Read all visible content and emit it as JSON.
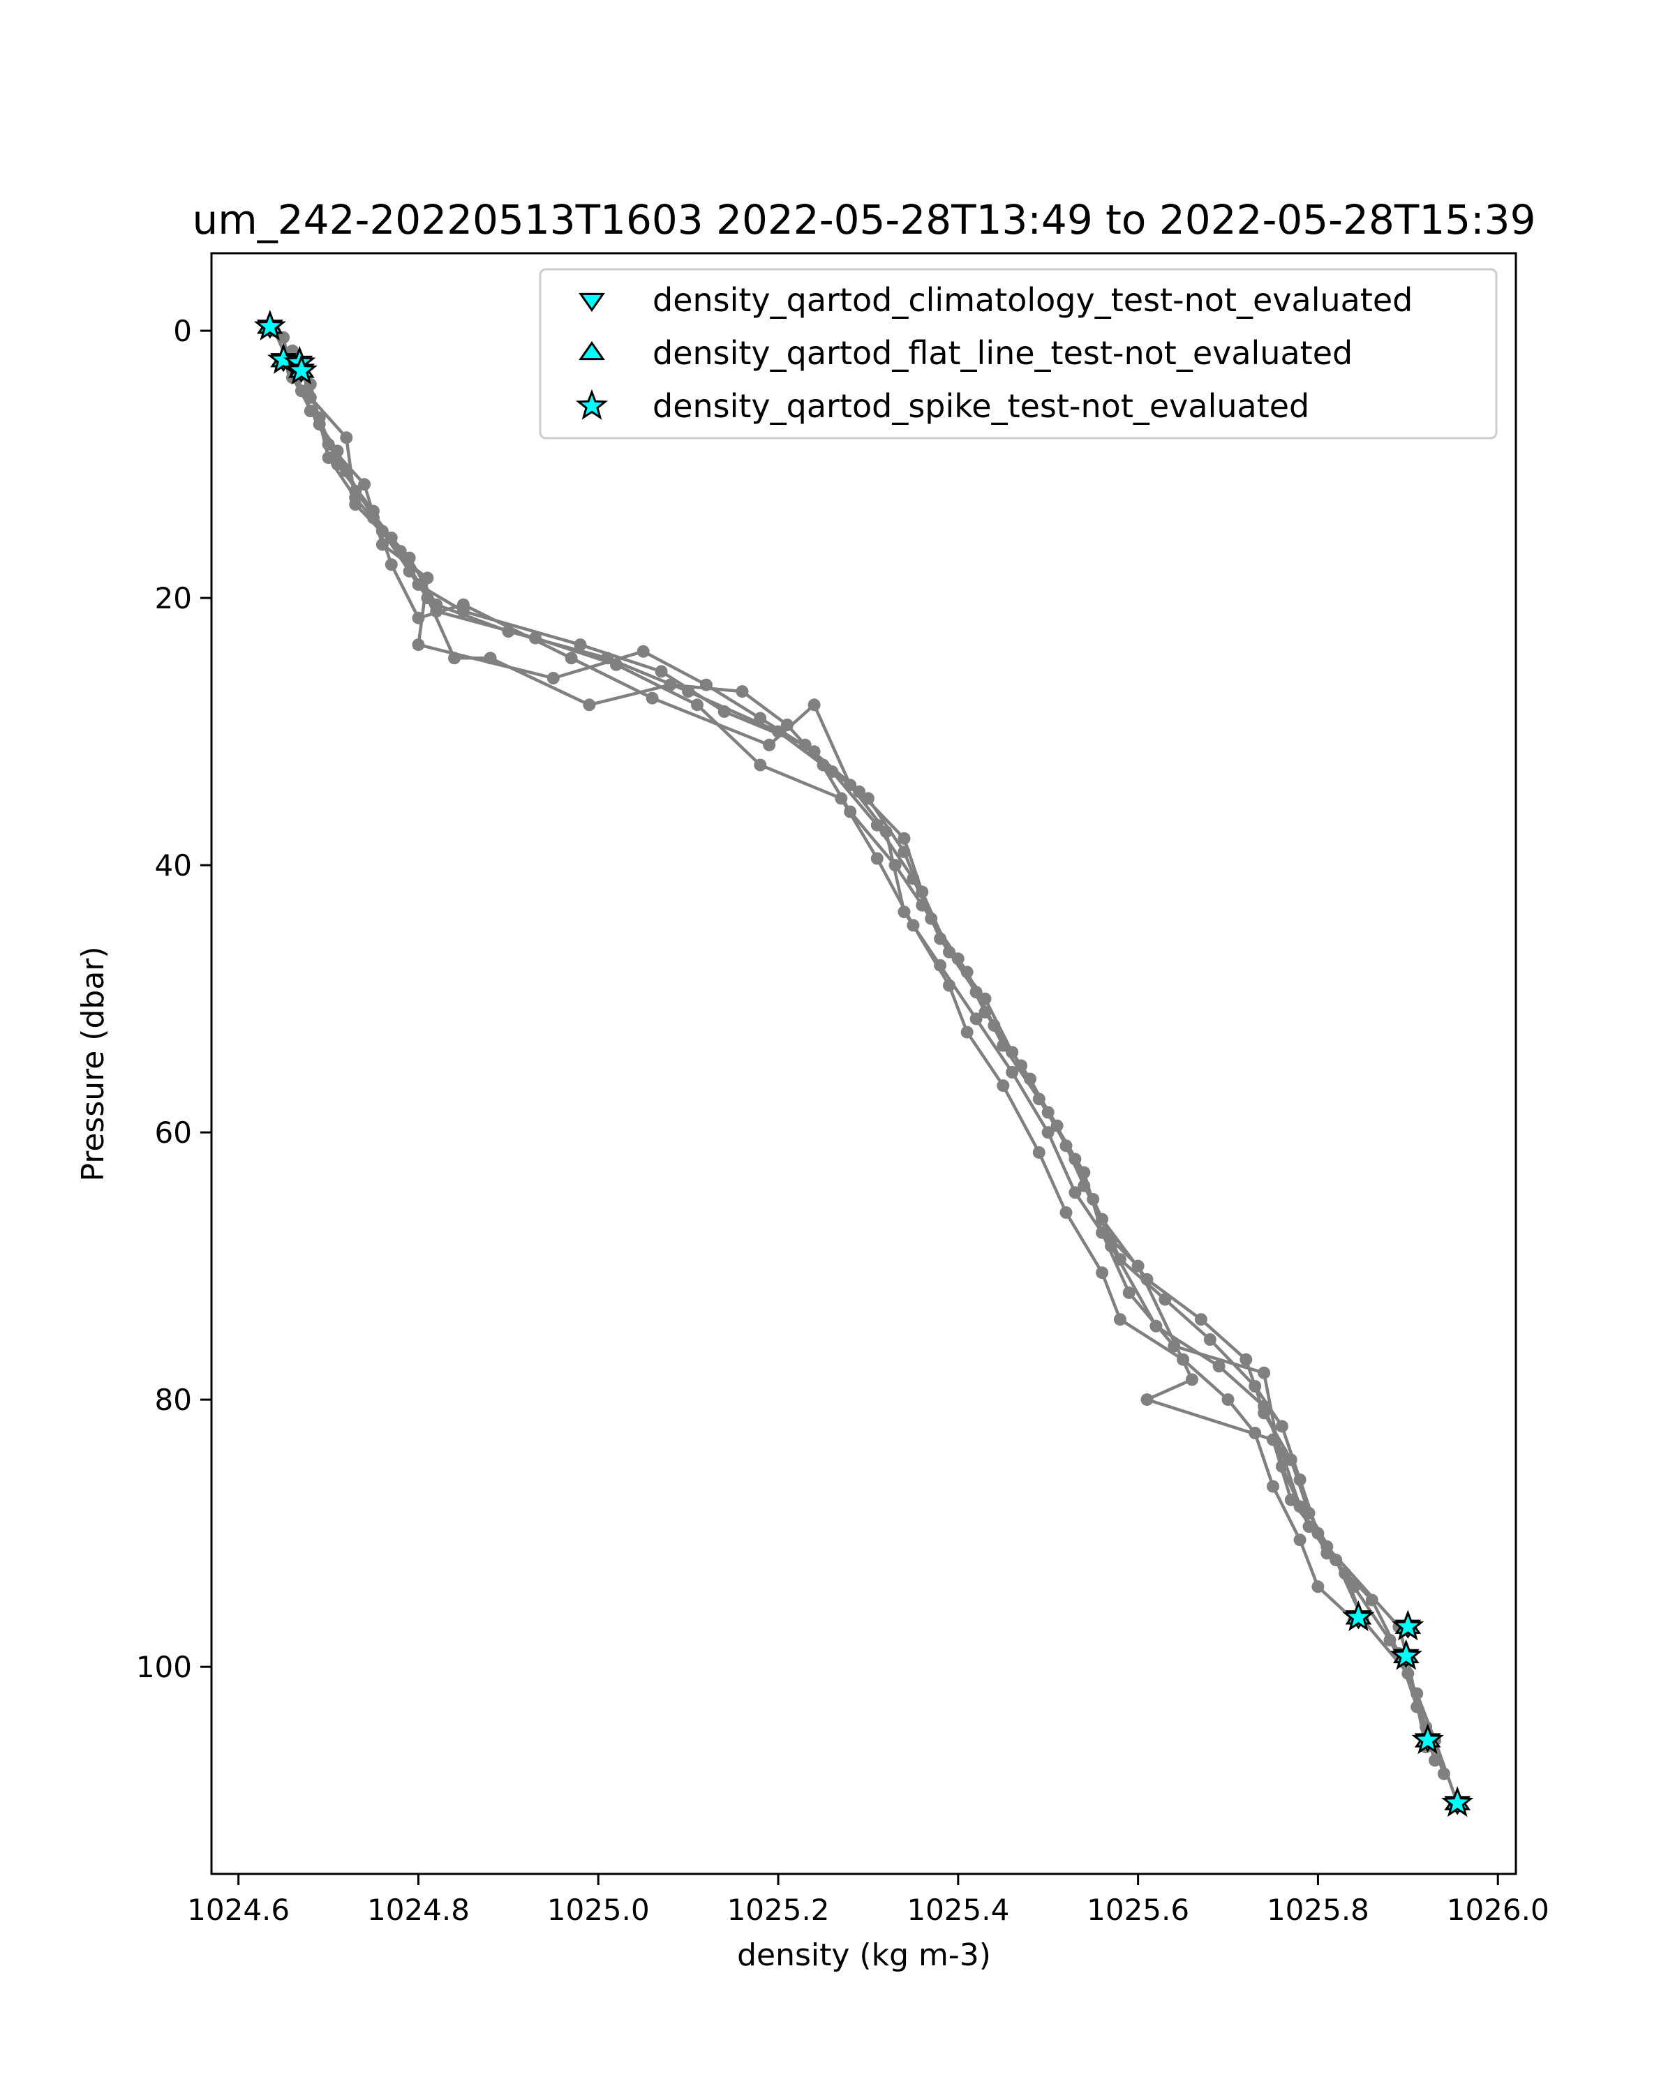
{
  "chart_data": {
    "type": "line",
    "title": "um_242-20220513T1603 2022-05-28T13:49 to 2022-05-28T15:39",
    "xlabel": "density (kg m-3)",
    "ylabel": "Pressure (dbar)",
    "xlim": [
      1024.57,
      1026.02
    ],
    "ylim": [
      115.5,
      -5.8
    ],
    "y_inverted": true,
    "grid": false,
    "legend_position": "top-right",
    "line_color": "#808080",
    "flag_color": "#00ffff",
    "x_ticks": [
      "1024.6",
      "1024.8",
      "1025.0",
      "1025.2",
      "1025.4",
      "1025.6",
      "1025.8",
      "1026.0"
    ],
    "x_tick_values": [
      1024.6,
      1024.8,
      1025.0,
      1025.2,
      1025.4,
      1025.6,
      1025.8,
      1026.0
    ],
    "y_ticks": [
      "0",
      "20",
      "40",
      "60",
      "80",
      "100"
    ],
    "y_tick_values": [
      0,
      20,
      40,
      60,
      80,
      100
    ],
    "series": [
      {
        "profile": 1,
        "points": [
          [
            1024.64,
            0.0
          ],
          [
            1024.66,
            3.0
          ],
          [
            1024.68,
            6.0
          ],
          [
            1024.71,
            9.0
          ],
          [
            1024.73,
            12.0
          ],
          [
            1024.77,
            15.5
          ],
          [
            1024.8,
            19.0
          ],
          [
            1024.85,
            21.0
          ],
          [
            1024.98,
            23.5
          ],
          [
            1025.07,
            25.5
          ],
          [
            1025.14,
            28.5
          ],
          [
            1025.23,
            31.0
          ],
          [
            1025.3,
            35.0
          ],
          [
            1025.34,
            39.0
          ],
          [
            1025.37,
            44.0
          ],
          [
            1025.41,
            48.0
          ],
          [
            1025.44,
            52.0
          ],
          [
            1025.48,
            56.0
          ],
          [
            1025.52,
            61.0
          ],
          [
            1025.55,
            65.0
          ],
          [
            1025.58,
            69.5
          ],
          [
            1025.63,
            72.5
          ],
          [
            1025.68,
            75.5
          ],
          [
            1025.73,
            79.0
          ],
          [
            1025.76,
            82.0
          ],
          [
            1025.78,
            86.0
          ],
          [
            1025.8,
            90.0
          ],
          [
            1025.84,
            94.0
          ],
          [
            1025.88,
            98.0
          ],
          [
            1025.91,
            102.0
          ],
          [
            1025.93,
            105.5
          ],
          [
            1025.955,
            110.2
          ]
        ]
      },
      {
        "profile": 2,
        "points": [
          [
            1024.65,
            0.5
          ],
          [
            1024.66,
            3.5
          ],
          [
            1024.69,
            7.0
          ],
          [
            1024.72,
            10.5
          ],
          [
            1024.75,
            14.0
          ],
          [
            1024.79,
            17.0
          ],
          [
            1024.82,
            20.5
          ],
          [
            1024.9,
            22.5
          ],
          [
            1025.01,
            24.5
          ],
          [
            1025.1,
            27.0
          ],
          [
            1025.2,
            30.0
          ],
          [
            1025.26,
            33.0
          ],
          [
            1025.31,
            37.0
          ],
          [
            1025.35,
            41.0
          ],
          [
            1025.38,
            45.5
          ],
          [
            1025.42,
            49.5
          ],
          [
            1025.45,
            53.5
          ],
          [
            1025.49,
            57.5
          ],
          [
            1025.53,
            62.0
          ],
          [
            1025.56,
            66.5
          ],
          [
            1025.61,
            71.0
          ],
          [
            1025.67,
            74.0
          ],
          [
            1025.72,
            77.0
          ],
          [
            1025.74,
            81.0
          ],
          [
            1025.77,
            84.5
          ],
          [
            1025.79,
            88.5
          ],
          [
            1025.82,
            92.0
          ],
          [
            1025.85,
            96.5
          ],
          [
            1025.9,
            100.5
          ],
          [
            1025.92,
            104.5
          ],
          [
            1025.94,
            108.0
          ]
        ]
      },
      {
        "profile": 3,
        "points": [
          [
            1024.66,
            1.5
          ],
          [
            1024.67,
            4.5
          ],
          [
            1024.7,
            8.5
          ],
          [
            1024.74,
            11.5
          ],
          [
            1024.76,
            16.0
          ],
          [
            1024.81,
            18.5
          ],
          [
            1024.8,
            23.5
          ],
          [
            1024.95,
            26.0
          ],
          [
            1025.05,
            24.0
          ],
          [
            1025.12,
            26.5
          ],
          [
            1025.18,
            29.0
          ],
          [
            1025.24,
            31.5
          ],
          [
            1025.28,
            36.0
          ],
          [
            1025.33,
            40.0
          ],
          [
            1025.36,
            43.0
          ],
          [
            1025.4,
            47.0
          ],
          [
            1025.43,
            51.0
          ],
          [
            1025.47,
            55.0
          ],
          [
            1025.51,
            59.5
          ],
          [
            1025.54,
            64.0
          ],
          [
            1025.57,
            68.0
          ],
          [
            1025.6,
            70.0
          ],
          [
            1025.66,
            78.5
          ],
          [
            1025.61,
            80.0
          ],
          [
            1025.75,
            83.0
          ],
          [
            1025.77,
            87.5
          ],
          [
            1025.81,
            91.0
          ],
          [
            1025.89,
            97.0
          ],
          [
            1025.9,
            99.5
          ],
          [
            1025.92,
            106.0
          ]
        ]
      },
      {
        "profile": 4,
        "points": [
          [
            1024.67,
            2.5
          ],
          [
            1024.68,
            5.0
          ],
          [
            1024.72,
            8.0
          ],
          [
            1024.73,
            13.0
          ],
          [
            1024.78,
            16.5
          ],
          [
            1024.81,
            20.0
          ],
          [
            1024.84,
            24.5
          ],
          [
            1024.88,
            24.5
          ],
          [
            1024.99,
            28.0
          ],
          [
            1025.08,
            26.5
          ],
          [
            1025.16,
            27.0
          ],
          [
            1025.21,
            29.5
          ],
          [
            1025.25,
            32.5
          ],
          [
            1025.29,
            34.5
          ],
          [
            1025.34,
            38.0
          ],
          [
            1025.36,
            42.0
          ],
          [
            1025.39,
            46.5
          ],
          [
            1025.43,
            50.0
          ],
          [
            1025.46,
            54.0
          ],
          [
            1025.5,
            58.5
          ],
          [
            1025.54,
            63.0
          ],
          [
            1025.56,
            67.5
          ],
          [
            1025.59,
            72.0
          ],
          [
            1025.64,
            76.0
          ],
          [
            1025.74,
            78.0
          ],
          [
            1025.76,
            85.0
          ],
          [
            1025.79,
            89.5
          ],
          [
            1025.83,
            93.0
          ],
          [
            1025.85,
            96.5
          ]
        ]
      },
      {
        "profile": 5,
        "points": [
          [
            1024.67,
            3.0
          ],
          [
            1024.69,
            6.5
          ],
          [
            1024.71,
            10.0
          ],
          [
            1024.75,
            13.5
          ],
          [
            1024.77,
            17.5
          ],
          [
            1024.8,
            21.5
          ],
          [
            1024.85,
            20.5
          ],
          [
            1024.97,
            24.5
          ],
          [
            1025.06,
            27.5
          ],
          [
            1025.19,
            31.0
          ],
          [
            1025.24,
            28.0
          ],
          [
            1025.28,
            34.0
          ],
          [
            1025.32,
            37.5
          ],
          [
            1025.34,
            43.5
          ],
          [
            1025.38,
            47.5
          ],
          [
            1025.42,
            51.5
          ],
          [
            1025.46,
            55.5
          ],
          [
            1025.5,
            60.0
          ],
          [
            1025.53,
            64.5
          ],
          [
            1025.57,
            68.5
          ],
          [
            1025.62,
            74.5
          ],
          [
            1025.69,
            77.5
          ],
          [
            1025.74,
            80.5
          ],
          [
            1025.76,
            84.0
          ],
          [
            1025.78,
            88.0
          ],
          [
            1025.81,
            91.5
          ],
          [
            1025.86,
            95.0
          ],
          [
            1025.89,
            99.0
          ],
          [
            1025.91,
            103.0
          ],
          [
            1025.93,
            107.0
          ]
        ]
      },
      {
        "profile": 6,
        "points": [
          [
            1024.66,
            2.0
          ],
          [
            1024.68,
            4.0
          ],
          [
            1024.7,
            9.5
          ],
          [
            1024.73,
            12.5
          ],
          [
            1024.76,
            15.0
          ],
          [
            1024.79,
            18.0
          ],
          [
            1024.82,
            21.0
          ],
          [
            1024.93,
            23.0
          ],
          [
            1025.02,
            25.0
          ],
          [
            1025.11,
            28.0
          ],
          [
            1025.18,
            32.5
          ],
          [
            1025.27,
            35.0
          ],
          [
            1025.31,
            39.5
          ],
          [
            1025.35,
            44.5
          ],
          [
            1025.39,
            49.0
          ],
          [
            1025.41,
            52.5
          ],
          [
            1025.45,
            56.5
          ],
          [
            1025.49,
            61.5
          ],
          [
            1025.52,
            66.0
          ],
          [
            1025.56,
            70.5
          ],
          [
            1025.58,
            74.0
          ],
          [
            1025.65,
            77.0
          ],
          [
            1025.7,
            80.0
          ],
          [
            1025.73,
            82.5
          ],
          [
            1025.75,
            86.5
          ],
          [
            1025.78,
            90.5
          ],
          [
            1025.8,
            94.0
          ],
          [
            1025.84,
            96.5
          ]
        ]
      }
    ],
    "flagged_points": {
      "marker": "star",
      "label": "density_qartod_spike_test-not_evaluated",
      "points": [
        [
          1024.635,
          -0.3
        ],
        [
          1024.65,
          2.2
        ],
        [
          1024.668,
          2.4
        ],
        [
          1024.67,
          3.0
        ],
        [
          1025.845,
          96.3
        ],
        [
          1025.9,
          97.0
        ],
        [
          1025.898,
          99.2
        ],
        [
          1025.922,
          105.5
        ],
        [
          1025.955,
          110.2
        ]
      ]
    }
  },
  "legend": {
    "items": [
      {
        "marker": "triangle-down",
        "label": "density_qartod_climatology_test-not_evaluated"
      },
      {
        "marker": "triangle-up",
        "label": "density_qartod_flat_line_test-not_evaluated"
      },
      {
        "marker": "star",
        "label": "density_qartod_spike_test-not_evaluated"
      }
    ]
  }
}
